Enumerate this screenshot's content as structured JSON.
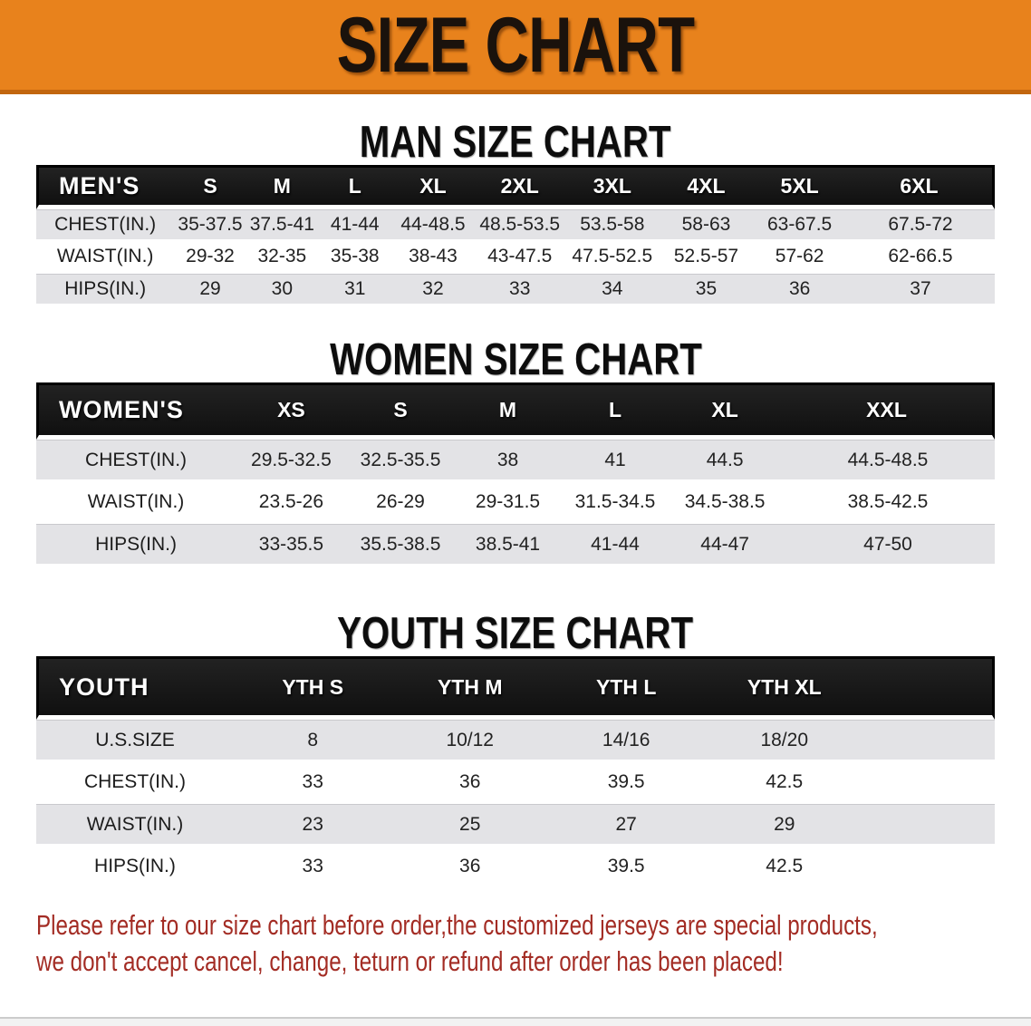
{
  "banner": {
    "title": "SIZE CHART",
    "bg_color": "#E8821C",
    "text_color": "#1a120c"
  },
  "sections": [
    {
      "heading": "MAN SIZE CHART",
      "header_label": "MEN'S",
      "columns": [
        "S",
        "M",
        "L",
        "XL",
        "2XL",
        "3XL",
        "4XL",
        "5XL",
        "6XL"
      ],
      "rows": [
        {
          "label": "CHEST(IN.)",
          "values": [
            "35-37.5",
            "37.5-41",
            "41-44",
            "44-48.5",
            "48.5-53.5",
            "53.5-58",
            "58-63",
            "63-67.5",
            "67.5-72"
          ]
        },
        {
          "label": "WAIST(IN.)",
          "values": [
            "29-32",
            "32-35",
            "35-38",
            "38-43",
            "43-47.5",
            "47.5-52.5",
            "52.5-57",
            "57-62",
            "62-66.5"
          ]
        },
        {
          "label": "HIPS(IN.)",
          "values": [
            "29",
            "30",
            "31",
            "32",
            "33",
            "34",
            "35",
            "36",
            "37"
          ]
        }
      ]
    },
    {
      "heading": "WOMEN SIZE CHART",
      "header_label": "WOMEN'S",
      "columns": [
        "XS",
        "S",
        "M",
        "L",
        "XL",
        "XXL"
      ],
      "rows": [
        {
          "label": "CHEST(IN.)",
          "values": [
            "29.5-32.5",
            "32.5-35.5",
            "38",
            "41",
            "44.5",
            "44.5-48.5"
          ]
        },
        {
          "label": "WAIST(IN.)",
          "values": [
            "23.5-26",
            "26-29",
            "29-31.5",
            "31.5-34.5",
            "34.5-38.5",
            "38.5-42.5"
          ]
        },
        {
          "label": "HIPS(IN.)",
          "values": [
            "33-35.5",
            "35.5-38.5",
            "38.5-41",
            "41-44",
            "44-47",
            "47-50"
          ]
        }
      ]
    },
    {
      "heading": "YOUTH SIZE CHART",
      "header_label": "YOUTH",
      "columns": [
        "YTH S",
        "YTH M",
        "YTH L",
        "YTH XL"
      ],
      "rows": [
        {
          "label": "U.S.SIZE",
          "values": [
            "8",
            "10/12",
            "14/16",
            "18/20"
          ]
        },
        {
          "label": "CHEST(IN.)",
          "values": [
            "33",
            "36",
            "39.5",
            "42.5"
          ]
        },
        {
          "label": "WAIST(IN.)",
          "values": [
            "23",
            "25",
            "27",
            "29"
          ]
        },
        {
          "label": "HIPS(IN.)",
          "values": [
            "33",
            "36",
            "39.5",
            "42.5"
          ]
        }
      ]
    }
  ],
  "disclaimer": {
    "color": "#A32C24",
    "lines": [
      "Please refer to our size chart before order,the customized jerseys are special products,",
      "we don't accept cancel, change, teturn or refund after order has been placed!"
    ]
  }
}
